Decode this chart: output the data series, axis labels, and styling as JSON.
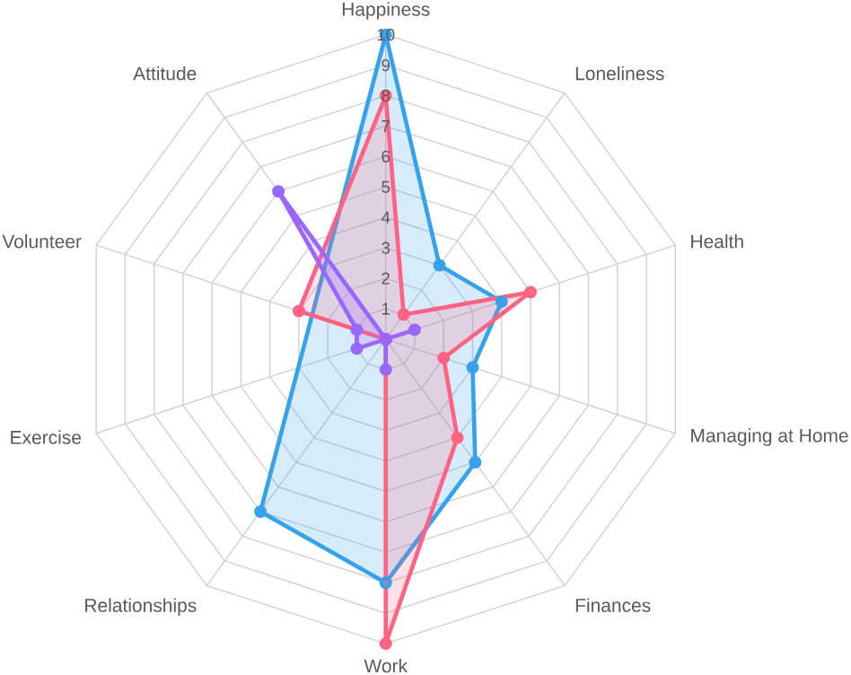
{
  "chart_data": {
    "type": "radar",
    "categories": [
      "Happiness",
      "Loneliness",
      "Health",
      "Managing at Home",
      "Finances",
      "Work",
      "Relationships",
      "Exercise",
      "Volunteer",
      "Attitude"
    ],
    "ylim": [
      0,
      10
    ],
    "yticks": [
      1,
      2,
      3,
      4,
      5,
      6,
      7,
      8,
      9,
      10
    ],
    "grid": true,
    "marker": "circle",
    "series": [
      {
        "color": "#36a2eb",
        "values": [
          10,
          3,
          4,
          3,
          5,
          8,
          7,
          null,
          null,
          null
        ]
      },
      {
        "color": "#ff6384",
        "values": [
          8,
          1,
          5,
          2,
          4,
          10,
          0,
          0,
          3,
          null
        ]
      },
      {
        "color": "#9966ff",
        "values": [
          0,
          0,
          1,
          0,
          0,
          1,
          0,
          1,
          1,
          6
        ]
      }
    ]
  }
}
